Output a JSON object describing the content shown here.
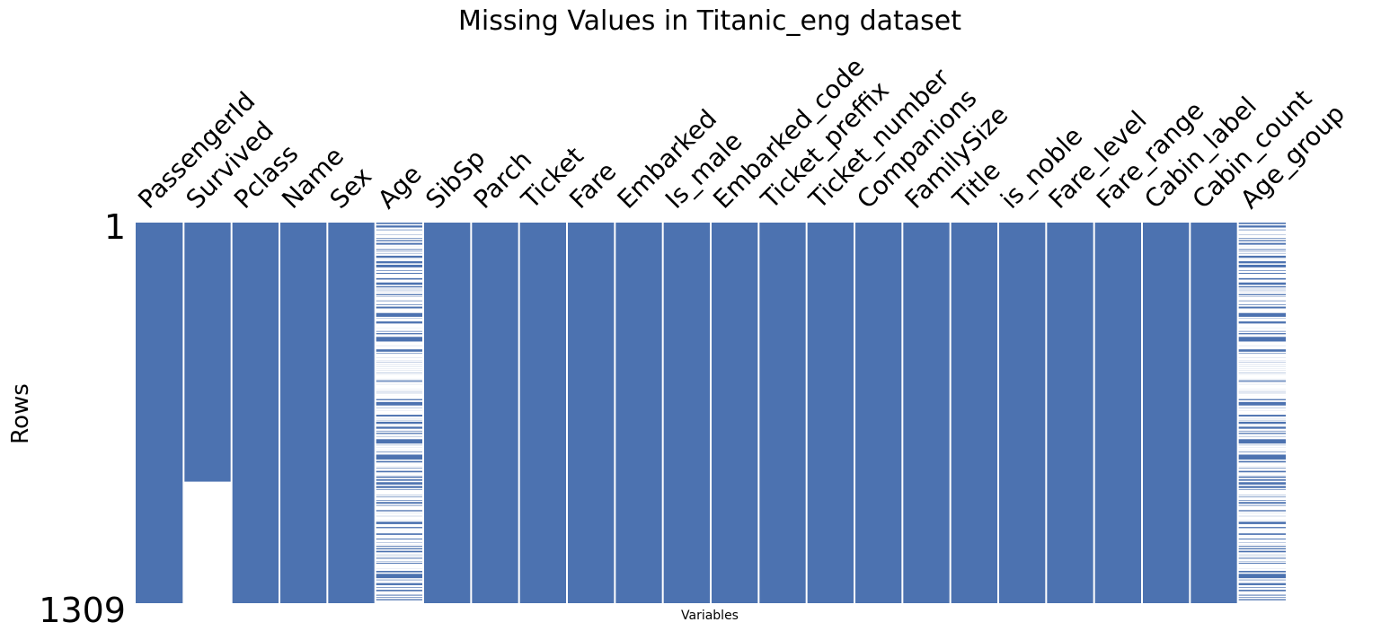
{
  "chart_data": {
    "type": "heatmap",
    "title": "Missing Values in Titanic_eng dataset",
    "xlabel": "Variables",
    "ylabel": "Rows",
    "row_ticks": [
      "1",
      "1309"
    ],
    "row_range": [
      1,
      1309
    ],
    "present_color": "#4c72b0",
    "missing_color": "#ffffff",
    "columns": [
      {
        "name": "PassengerId",
        "missing_rows": []
      },
      {
        "name": "Survived",
        "missing_rows": [
          [
            892,
            1309
          ]
        ]
      },
      {
        "name": "Pclass",
        "missing_rows": []
      },
      {
        "name": "Name",
        "missing_rows": []
      },
      {
        "name": "Sex",
        "missing_rows": []
      },
      {
        "name": "Age",
        "missing_rows": [
          6,
          18,
          20,
          27,
          29,
          30,
          32,
          33,
          37,
          43,
          46,
          47,
          48,
          49,
          56,
          65,
          66,
          77,
          78,
          83,
          88,
          96,
          102,
          108,
          110,
          122,
          127,
          129,
          141,
          155,
          159,
          160,
          167,
          169,
          177,
          181,
          182,
          186,
          187,
          197,
          199,
          202,
          215,
          224,
          230,
          236,
          241,
          242,
          251,
          257,
          261,
          264,
          271,
          275,
          278,
          285,
          296,
          299,
          301,
          302,
          304,
          305,
          307,
          325,
          331,
          335,
          336,
          348,
          352,
          355,
          359,
          360,
          365,
          368,
          369,
          376,
          385,
          389,
          410,
          411,
          412,
          414,
          416,
          421,
          426,
          429,
          432,
          445,
          452,
          455,
          458,
          460,
          465,
          467,
          469,
          471,
          476,
          482,
          486,
          491,
          496,
          498,
          503,
          508,
          512,
          518,
          523,
          525,
          528,
          532,
          534,
          539,
          548,
          553,
          558,
          561,
          564,
          565,
          569,
          574,
          579,
          585,
          590,
          594,
          597,
          599,
          602,
          603,
          612,
          613,
          630,
          634,
          640,
          644,
          649,
          651,
          654,
          657,
          668,
          670,
          675,
          681,
          693,
          698,
          710,
          712,
          719,
          728,
          733,
          739,
          740,
          741,
          761,
          767,
          769,
          774,
          777,
          779,
          784,
          791,
          793,
          794,
          816,
          826,
          827,
          829,
          833,
          838,
          840,
          847,
          850,
          860,
          864,
          869,
          879,
          889,
          902,
          914,
          921,
          925,
          928,
          931,
          933,
          939,
          946,
          950,
          957,
          968,
          975,
          976,
          977,
          980,
          983,
          985,
          994,
          999,
          1000,
          1003,
          1008,
          1013,
          1016,
          1019,
          1024,
          1025,
          1038,
          1040,
          1043,
          1052,
          1055,
          1060,
          1062,
          1065,
          1075,
          1080,
          1083,
          1091,
          1092,
          1097,
          1103,
          1108,
          1116,
          1125,
          1135,
          1136,
          1141,
          1147,
          1149,
          1157,
          1158,
          1160,
          1166,
          1174,
          1176,
          1180,
          1181,
          1183,
          1185,
          1190,
          1194,
          1204,
          1224,
          1231,
          1234,
          1236,
          1248,
          1250,
          1257,
          1259,
          1269,
          1272,
          1276,
          1284,
          1291,
          1300,
          1302,
          1305,
          1308,
          1309
        ]
      },
      {
        "name": "SibSp",
        "missing_rows": []
      },
      {
        "name": "Parch",
        "missing_rows": []
      },
      {
        "name": "Ticket",
        "missing_rows": []
      },
      {
        "name": "Fare",
        "missing_rows": []
      },
      {
        "name": "Embarked",
        "missing_rows": []
      },
      {
        "name": "Is_male",
        "missing_rows": []
      },
      {
        "name": "Embarked_code",
        "missing_rows": []
      },
      {
        "name": "Ticket_preffix",
        "missing_rows": []
      },
      {
        "name": "Ticket_number",
        "missing_rows": []
      },
      {
        "name": "Companions",
        "missing_rows": []
      },
      {
        "name": "FamilySize",
        "missing_rows": []
      },
      {
        "name": "Title",
        "missing_rows": []
      },
      {
        "name": "is_noble",
        "missing_rows": []
      },
      {
        "name": "Fare_level",
        "missing_rows": []
      },
      {
        "name": "Fare_range",
        "missing_rows": []
      },
      {
        "name": "Cabin_label",
        "missing_rows": []
      },
      {
        "name": "Cabin_count",
        "missing_rows": []
      },
      {
        "name": "Age_group",
        "missing_rows": "same as Age"
      }
    ]
  }
}
